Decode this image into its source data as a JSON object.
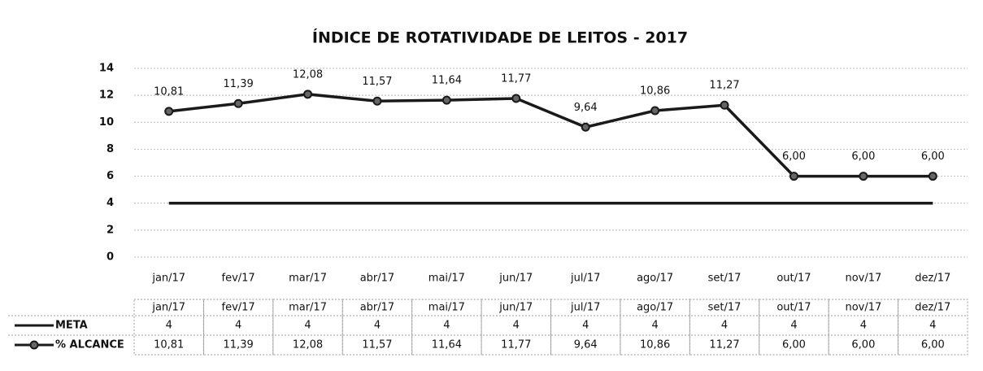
{
  "chart_data": {
    "type": "line",
    "title": "ÍNDICE DE ROTATIVIDADE DE LEITOS - 2017",
    "categories": [
      "jan/17",
      "fev/17",
      "mar/17",
      "abr/17",
      "mai/17",
      "jun/17",
      "jul/17",
      "ago/17",
      "set/17",
      "out/17",
      "nov/17",
      "dez/17"
    ],
    "series": [
      {
        "name": "META",
        "color": "#1a1a1a",
        "values": [
          4,
          4,
          4,
          4,
          4,
          4,
          4,
          4,
          4,
          4,
          4,
          4
        ],
        "marker": false
      },
      {
        "name": "% ALCANCE",
        "color": "#1a1a1a",
        "values": [
          10.81,
          11.39,
          12.08,
          11.57,
          11.64,
          11.77,
          9.64,
          10.86,
          11.27,
          6,
          6,
          6
        ],
        "value_labels": [
          "10,81",
          "11,39",
          "12,08",
          "11,57",
          "11,64",
          "11,77",
          "9,64",
          "10,86",
          "11,27",
          "6,00",
          "6,00",
          "6,00"
        ],
        "marker": true
      }
    ],
    "ylim": [
      0,
      14
    ],
    "yticks": [
      0,
      2,
      4,
      6,
      8,
      10,
      12,
      14
    ],
    "grid": true,
    "data_table": true
  }
}
